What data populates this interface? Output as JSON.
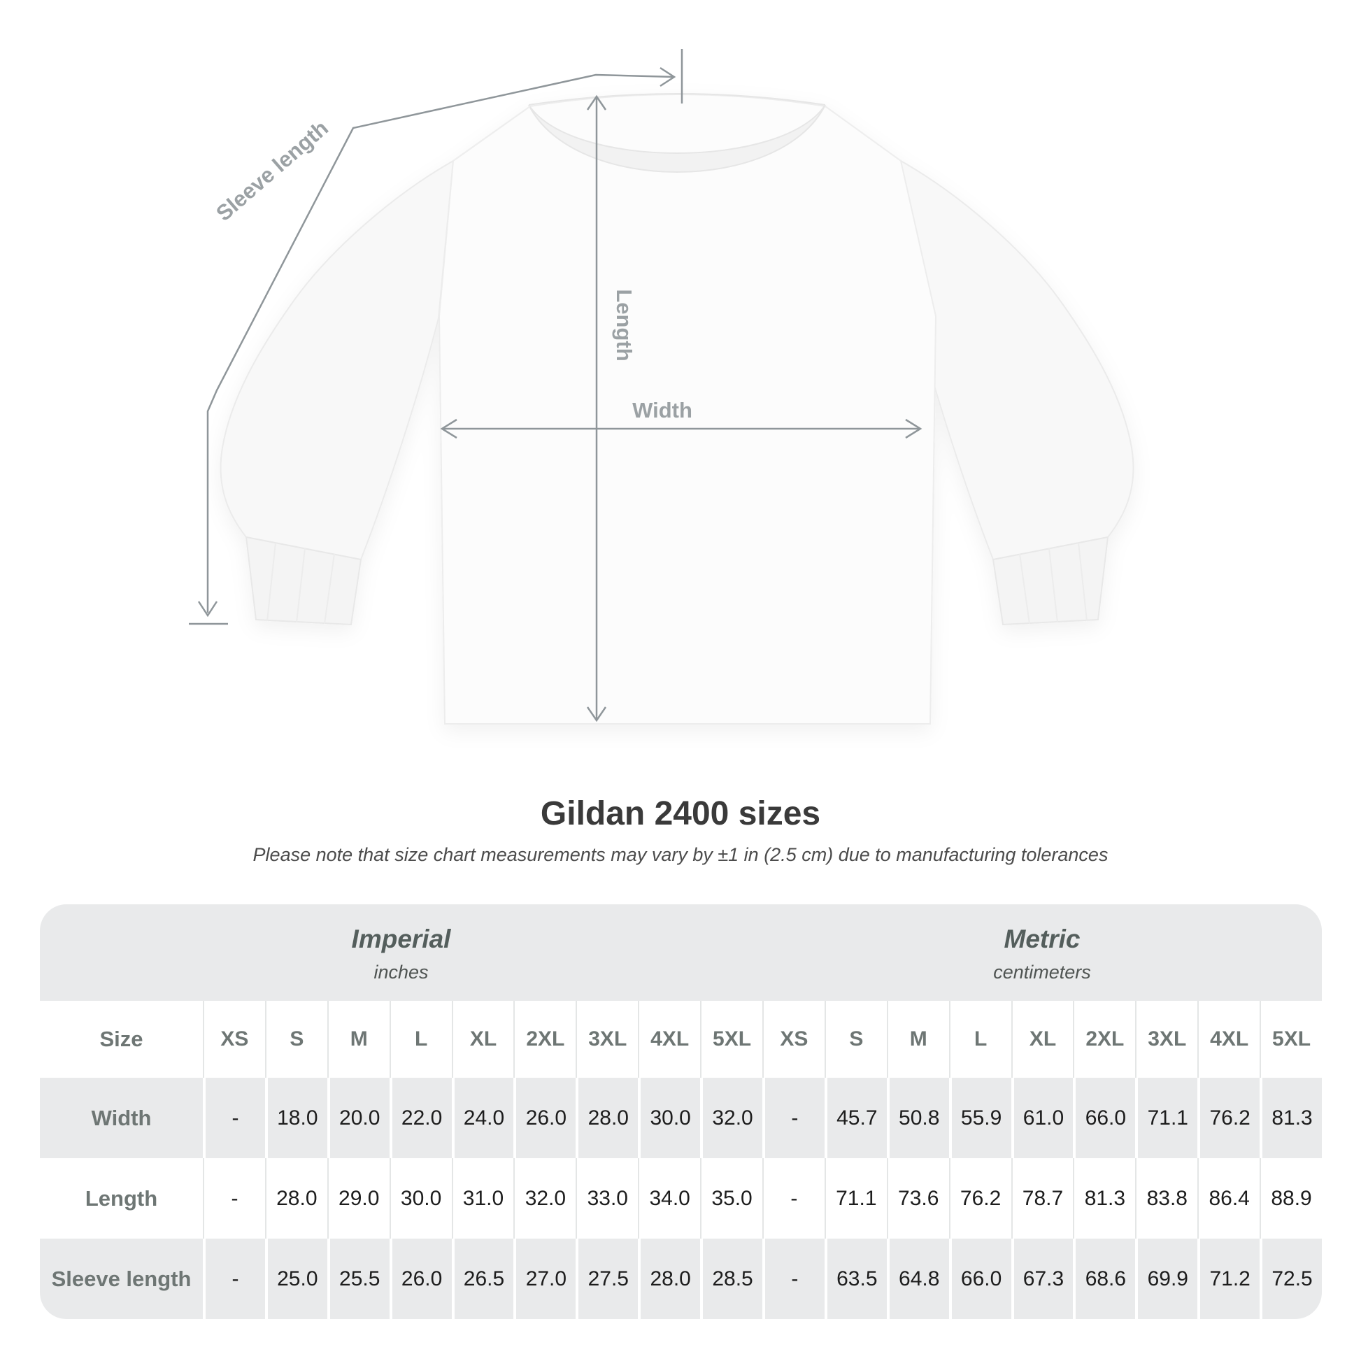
{
  "diagram": {
    "sleeve_length_label": "Sleeve length",
    "length_label": "Length",
    "width_label": "Width"
  },
  "title": "Gildan 2400 sizes",
  "note": "Please note that size chart measurements may vary by ±1 in (2.5 cm) due to manufacturing tolerances",
  "table": {
    "unit_groups": [
      {
        "name": "Imperial",
        "unit": "inches"
      },
      {
        "name": "Metric",
        "unit": "centimeters"
      }
    ],
    "size_col_header": "Size",
    "size_headers": [
      "XS",
      "S",
      "M",
      "L",
      "XL",
      "2XL",
      "3XL",
      "4XL",
      "5XL",
      "XS",
      "S",
      "M",
      "L",
      "XL",
      "2XL",
      "3XL",
      "4XL",
      "5XL"
    ],
    "rows": [
      {
        "label": "Width",
        "values": [
          "-",
          "18.0",
          "20.0",
          "22.0",
          "24.0",
          "26.0",
          "28.0",
          "30.0",
          "32.0",
          "-",
          "45.7",
          "50.8",
          "55.9",
          "61.0",
          "66.0",
          "71.1",
          "76.2",
          "81.3"
        ]
      },
      {
        "label": "Length",
        "values": [
          "-",
          "28.0",
          "29.0",
          "30.0",
          "31.0",
          "32.0",
          "33.0",
          "34.0",
          "35.0",
          "-",
          "71.1",
          "73.6",
          "76.2",
          "78.7",
          "81.3",
          "83.8",
          "86.4",
          "88.9"
        ]
      },
      {
        "label": "Sleeve length",
        "values": [
          "-",
          "25.0",
          "25.5",
          "26.0",
          "26.5",
          "27.0",
          "27.5",
          "28.0",
          "28.5",
          "-",
          "63.5",
          "64.8",
          "66.0",
          "67.3",
          "68.6",
          "69.9",
          "71.2",
          "72.5"
        ]
      }
    ]
  },
  "chart_data": {
    "type": "table",
    "title": "Gildan 2400 sizes",
    "columns": [
      "XS",
      "S",
      "M",
      "L",
      "XL",
      "2XL",
      "3XL",
      "4XL",
      "5XL"
    ],
    "imperial_inches": {
      "Width": [
        null,
        18.0,
        20.0,
        22.0,
        24.0,
        26.0,
        28.0,
        30.0,
        32.0
      ],
      "Length": [
        null,
        28.0,
        29.0,
        30.0,
        31.0,
        32.0,
        33.0,
        34.0,
        35.0
      ],
      "Sleeve length": [
        null,
        25.0,
        25.5,
        26.0,
        26.5,
        27.0,
        27.5,
        28.0,
        28.5
      ]
    },
    "metric_centimeters": {
      "Width": [
        null,
        45.7,
        50.8,
        55.9,
        61.0,
        66.0,
        71.1,
        76.2,
        81.3
      ],
      "Length": [
        null,
        71.1,
        73.6,
        76.2,
        78.7,
        81.3,
        83.8,
        86.4,
        88.9
      ],
      "Sleeve length": [
        null,
        63.5,
        64.8,
        66.0,
        67.3,
        68.6,
        69.9,
        71.2,
        72.5
      ]
    }
  },
  "colors": {
    "table_band_gray": "#e9eaeb",
    "row_gray": "#e9eaeb",
    "band_text": "#545e5c",
    "label_text": "#6e7674",
    "value_text": "#1d1d1d",
    "title_text": "#3a3a3a",
    "measure_line": "#8f969a",
    "measure_label": "#9ba1a4",
    "shirt_fill": "#fbfbfb"
  }
}
